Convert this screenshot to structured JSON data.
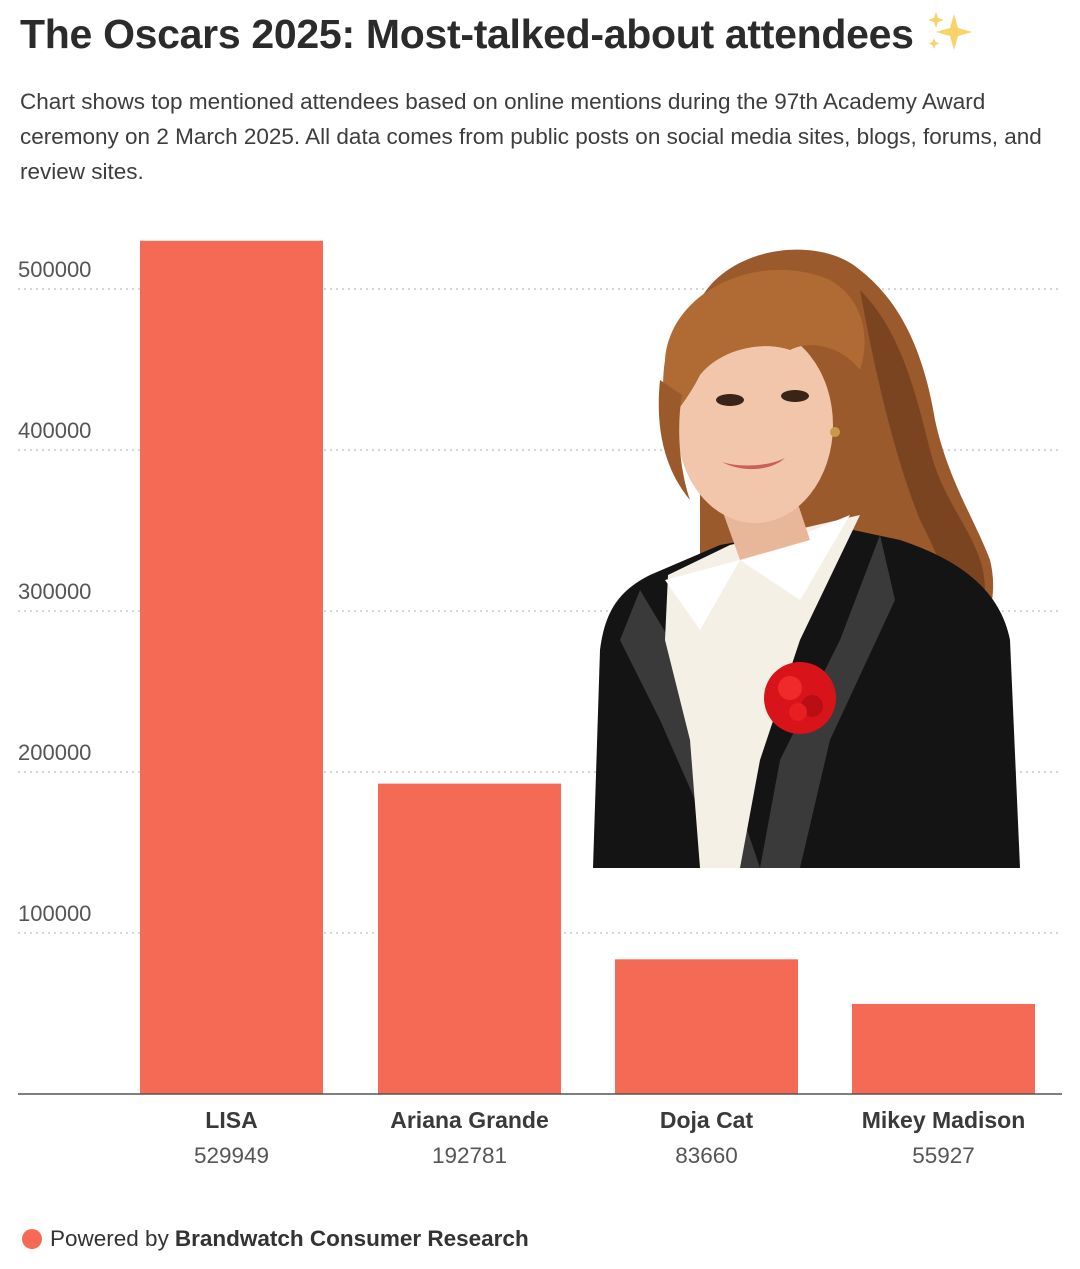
{
  "header": {
    "title": "The Oscars 2025: Most-talked-about attendees",
    "title_emoji_icon": "sparkles-icon",
    "subtitle": "Chart shows top mentioned attendees based on online mentions during the 97th Academy Award ceremony on 2 March 2025. All data comes from public posts on social media sites, blogs, forums, and review sites."
  },
  "chart_data": {
    "type": "bar",
    "categories": [
      "LISA",
      "Ariana Grande",
      "Doja Cat",
      "Mikey Madison"
    ],
    "values": [
      529949,
      192781,
      83660,
      55927
    ],
    "value_labels": [
      "529949",
      "192781",
      "83660",
      "55927"
    ],
    "y_ticks": [
      100000,
      200000,
      300000,
      400000,
      500000
    ],
    "y_tick_labels": [
      "100000",
      "200000",
      "300000",
      "400000",
      "500000"
    ],
    "ylim": [
      0,
      530000
    ],
    "grid": true,
    "grid_style": "dotted",
    "legend": "none",
    "bar_color": "#f46a55",
    "photo_icon": "attendee-portrait-photo"
  },
  "footer": {
    "prefix": "Powered by",
    "brand": "Brandwatch Consumer Research",
    "dot_color": "#f46a55"
  }
}
